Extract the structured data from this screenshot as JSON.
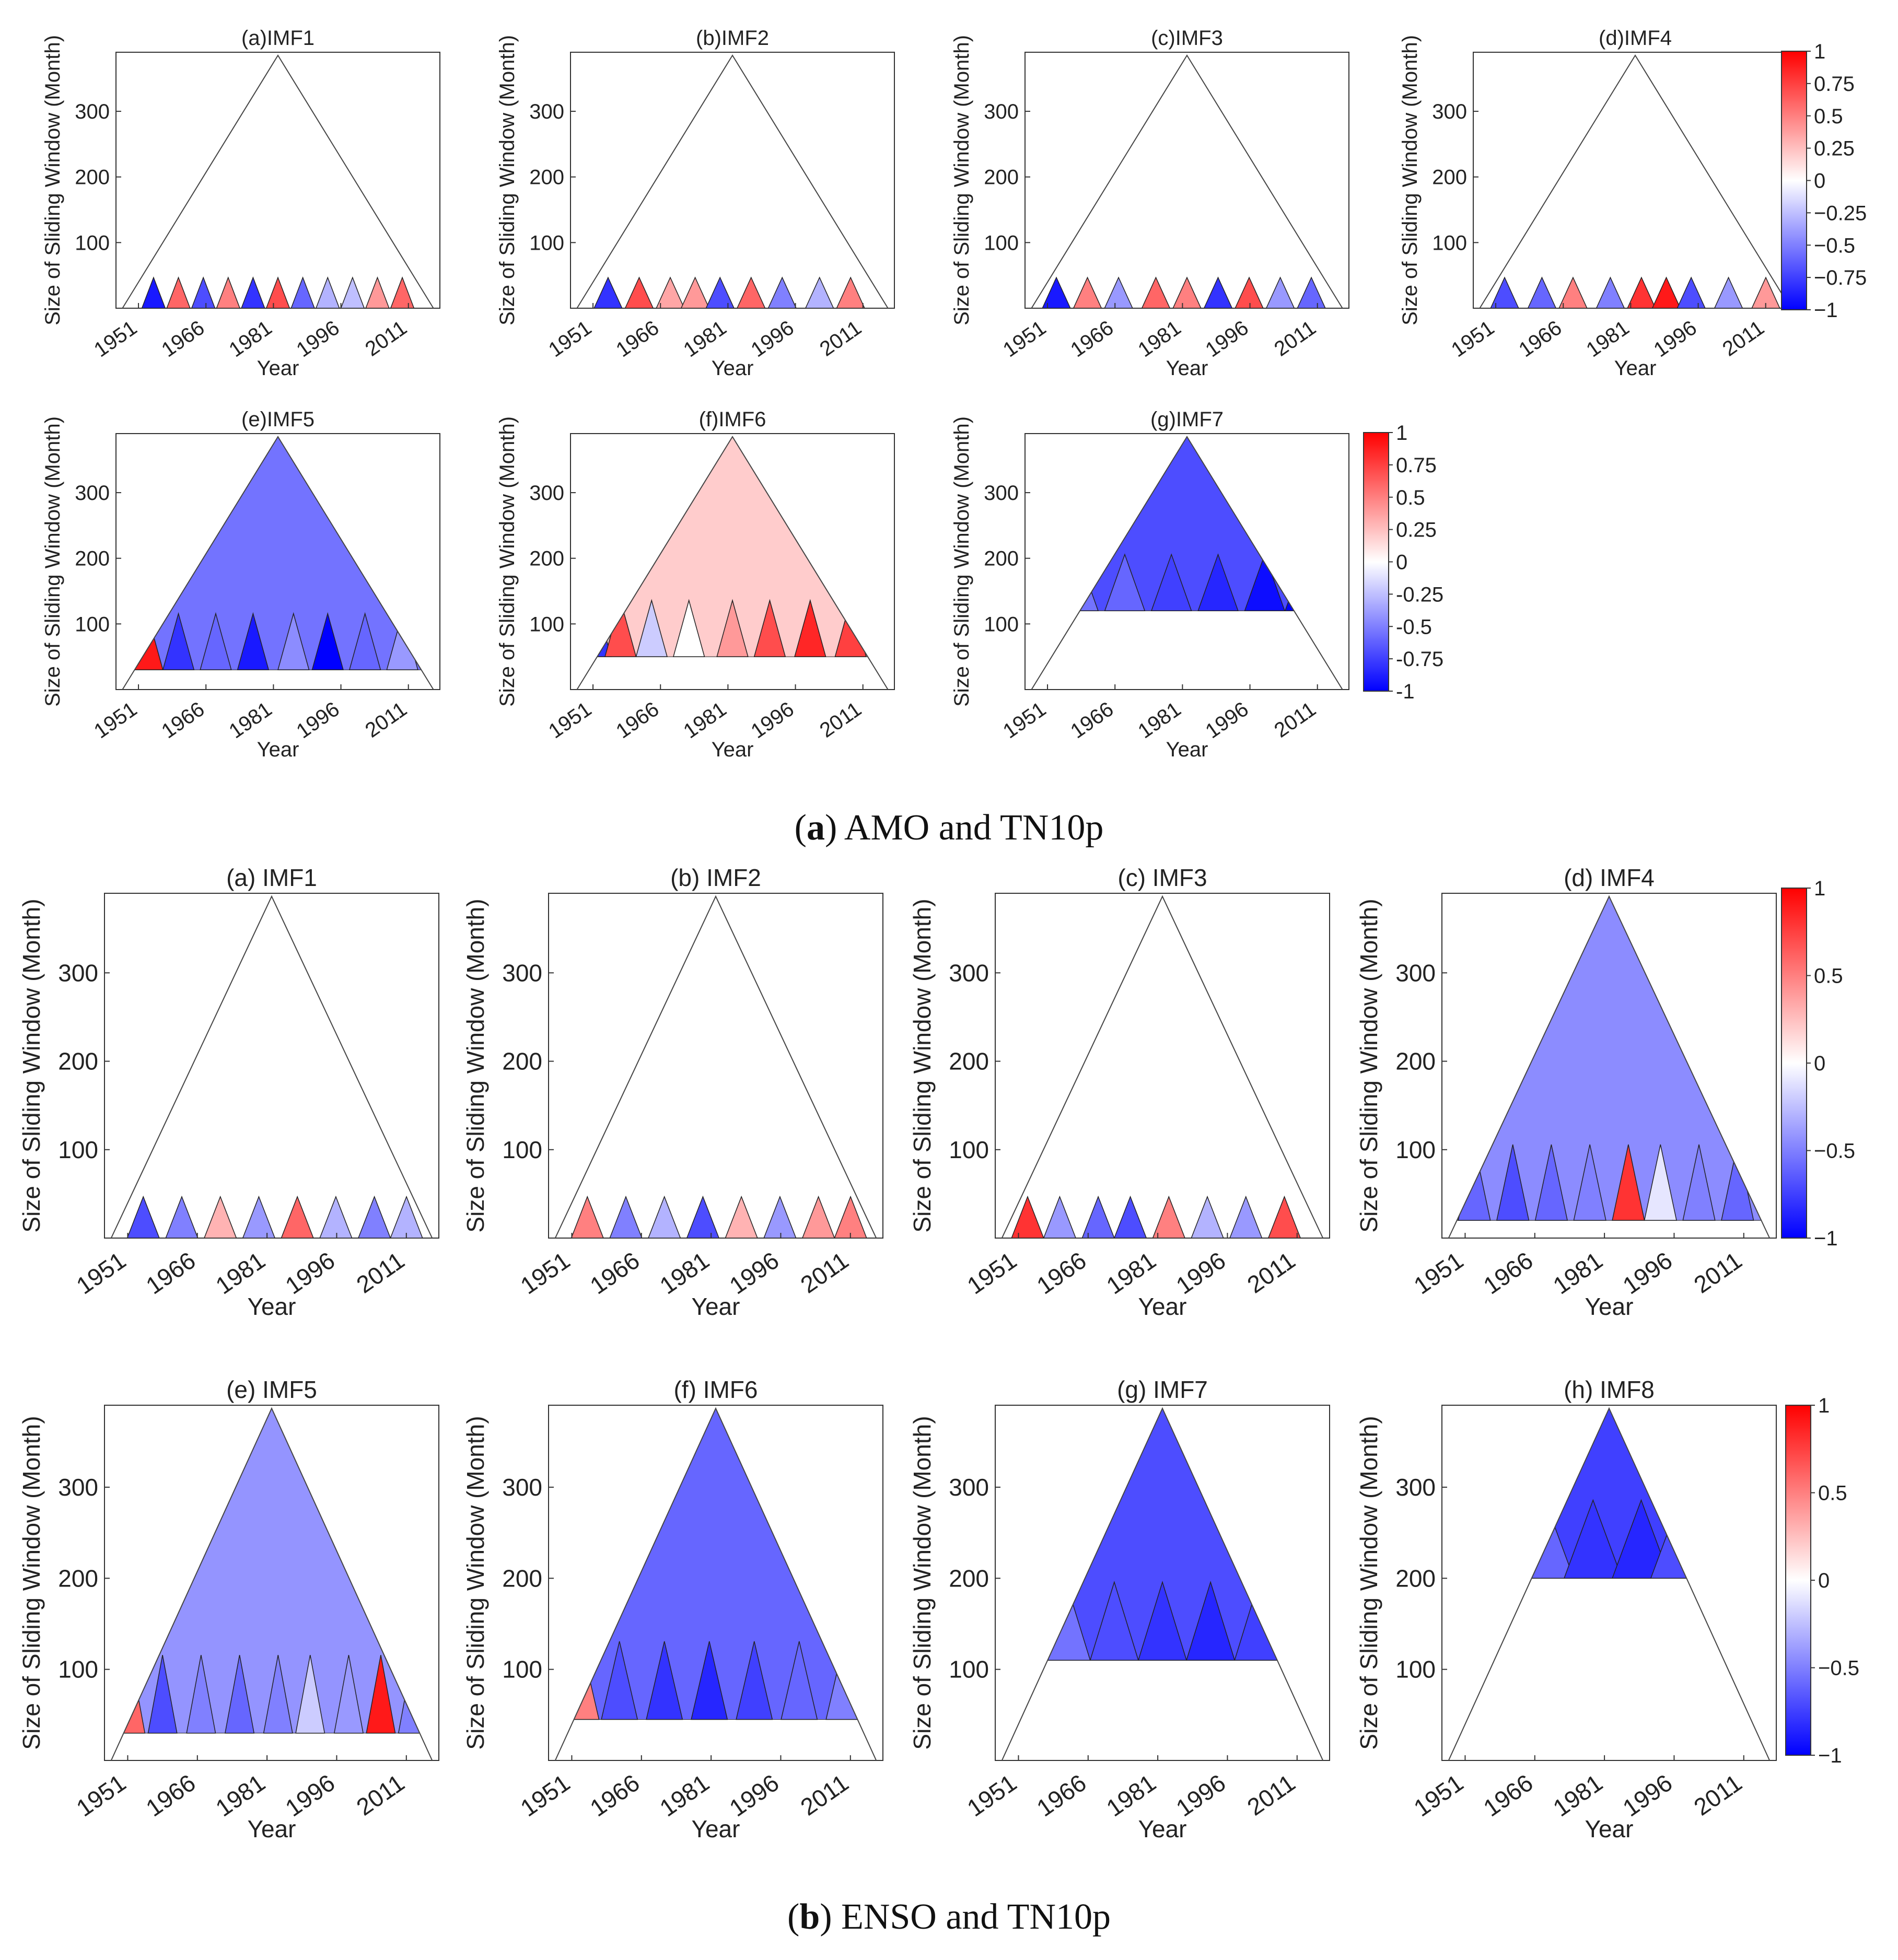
{
  "figure": {
    "section_a": {
      "label": "a",
      "caption": "AMO and TN10p",
      "panels": [
        {
          "title": "(a)IMF1",
          "coverage": "base",
          "corr": -0.05,
          "cells": [
            [
              10,
              -0.9
            ],
            [
              18,
              0.6
            ],
            [
              26,
              -0.7
            ],
            [
              34,
              0.5
            ],
            [
              42,
              -0.8
            ],
            [
              50,
              0.7
            ],
            [
              58,
              -0.6
            ],
            [
              66,
              -0.3
            ],
            [
              74,
              -0.25
            ],
            [
              82,
              0.4
            ],
            [
              90,
              0.6
            ]
          ]
        },
        {
          "title": "(b)IMF2",
          "coverage": "base",
          "corr": 0.0,
          "cells": [
            [
              10,
              -0.8
            ],
            [
              20,
              0.7
            ],
            [
              30,
              0.35
            ],
            [
              38,
              0.4
            ],
            [
              46,
              -0.7
            ],
            [
              56,
              0.6
            ],
            [
              66,
              -0.5
            ],
            [
              78,
              -0.3
            ],
            [
              88,
              0.5
            ]
          ]
        },
        {
          "title": "(c)IMF3",
          "coverage": "base",
          "corr": -0.2,
          "cells": [
            [
              8,
              -0.9
            ],
            [
              18,
              0.5
            ],
            [
              28,
              -0.4
            ],
            [
              40,
              0.6
            ],
            [
              50,
              0.5
            ],
            [
              60,
              -0.8
            ],
            [
              70,
              0.7
            ],
            [
              80,
              -0.4
            ],
            [
              90,
              -0.6
            ]
          ]
        },
        {
          "title": "(d)IMF4",
          "coverage": "base",
          "corr": -0.3,
          "cells": [
            [
              8,
              -0.7
            ],
            [
              20,
              -0.6
            ],
            [
              30,
              0.5
            ],
            [
              42,
              -0.5
            ],
            [
              52,
              0.8
            ],
            [
              60,
              0.9
            ],
            [
              68,
              -0.7
            ],
            [
              80,
              -0.4
            ],
            [
              92,
              0.4
            ]
          ]
        },
        {
          "title": "(e)IMF5",
          "coverage": "full",
          "min_window": 30,
          "corr": -0.55,
          "cells": [
            [
              8,
              0.9
            ],
            [
              18,
              -0.8
            ],
            [
              30,
              -0.6
            ],
            [
              42,
              -0.9
            ],
            [
              55,
              -0.45
            ],
            [
              66,
              -1.0
            ],
            [
              78,
              -0.6
            ],
            [
              90,
              -0.4
            ]
          ]
        },
        {
          "title": "(f)IMF6",
          "coverage": "full",
          "min_window": 50,
          "corr": 0.2,
          "cells": [
            [
              6,
              -0.8
            ],
            [
              14,
              0.7
            ],
            [
              24,
              -0.2
            ],
            [
              36,
              0.0
            ],
            [
              50,
              0.4
            ],
            [
              62,
              0.7
            ],
            [
              75,
              0.85
            ],
            [
              88,
              0.75
            ]
          ]
        },
        {
          "title": "(g)IMF7",
          "coverage": "full",
          "min_window": 120,
          "corr": -0.7,
          "cells": [
            [
              15,
              -0.55
            ],
            [
              30,
              -0.6
            ],
            [
              45,
              -0.75
            ],
            [
              60,
              -0.85
            ],
            [
              75,
              -0.95
            ],
            [
              88,
              -1.0
            ]
          ]
        }
      ],
      "colorbars": [
        {
          "ticks": [
            "1",
            "0.75",
            "0.5",
            "0.25",
            "0",
            "−0.25",
            "−0.5",
            "−0.75",
            "−1"
          ]
        },
        {
          "ticks": [
            "1",
            "0.75",
            "0.5",
            "0.25",
            "0",
            "-0.25",
            "-0.5",
            "-0.75",
            "-1"
          ]
        }
      ]
    },
    "section_b": {
      "label": "b",
      "caption": "ENSO and TN10p",
      "panels": [
        {
          "title": "(a) IMF1",
          "coverage": "base",
          "corr": -0.05,
          "cells": [
            [
              10,
              -0.7
            ],
            [
              22,
              -0.5
            ],
            [
              34,
              0.3
            ],
            [
              46,
              -0.4
            ],
            [
              58,
              0.6
            ],
            [
              70,
              -0.3
            ],
            [
              82,
              -0.5
            ],
            [
              92,
              -0.3
            ]
          ]
        },
        {
          "title": "(b) IMF2",
          "coverage": "base",
          "corr": -0.18,
          "cells": [
            [
              10,
              0.5
            ],
            [
              22,
              -0.5
            ],
            [
              34,
              -0.3
            ],
            [
              46,
              -0.7
            ],
            [
              58,
              0.3
            ],
            [
              70,
              -0.4
            ],
            [
              82,
              0.4
            ],
            [
              92,
              0.5
            ]
          ]
        },
        {
          "title": "(c) IMF3",
          "coverage": "base",
          "corr": -0.05,
          "cells": [
            [
              8,
              0.8
            ],
            [
              18,
              -0.4
            ],
            [
              30,
              -0.6
            ],
            [
              40,
              -0.7
            ],
            [
              52,
              0.5
            ],
            [
              64,
              -0.3
            ],
            [
              76,
              -0.4
            ],
            [
              88,
              0.7
            ]
          ]
        },
        {
          "title": "(d) IMF4",
          "coverage": "full",
          "min_window": 20,
          "corr": -0.45,
          "cells": [
            [
              8,
              -0.6
            ],
            [
              20,
              -0.7
            ],
            [
              32,
              -0.6
            ],
            [
              44,
              -0.5
            ],
            [
              56,
              0.8
            ],
            [
              66,
              -0.1
            ],
            [
              78,
              -0.5
            ],
            [
              90,
              -0.6
            ]
          ]
        },
        {
          "title": "(e) IMF5",
          "coverage": "full",
          "min_window": 30,
          "corr": -0.42,
          "cells": [
            [
              6,
              0.6
            ],
            [
              16,
              -0.7
            ],
            [
              28,
              -0.5
            ],
            [
              40,
              -0.6
            ],
            [
              52,
              -0.5
            ],
            [
              62,
              -0.2
            ],
            [
              74,
              -0.4
            ],
            [
              84,
              0.9
            ],
            [
              94,
              -0.5
            ]
          ]
        },
        {
          "title": "(f) IMF6",
          "coverage": "full",
          "min_window": 45,
          "corr": -0.6,
          "cells": [
            [
              8,
              0.5
            ],
            [
              20,
              -0.7
            ],
            [
              34,
              -0.8
            ],
            [
              48,
              -0.85
            ],
            [
              62,
              -0.75
            ],
            [
              76,
              -0.6
            ],
            [
              90,
              -0.5
            ]
          ]
        },
        {
          "title": "(g) IMF7",
          "coverage": "full",
          "min_window": 110,
          "corr": -0.7,
          "cells": [
            [
              20,
              -0.55
            ],
            [
              35,
              -0.7
            ],
            [
              50,
              -0.8
            ],
            [
              65,
              -0.85
            ],
            [
              80,
              -0.75
            ]
          ]
        },
        {
          "title": "(h) IMF8",
          "coverage": "full",
          "min_window": 200,
          "corr": -0.75,
          "cells": [
            [
              30,
              -0.6
            ],
            [
              45,
              -0.8
            ],
            [
              60,
              -0.85
            ],
            [
              72,
              -0.7
            ]
          ]
        }
      ],
      "colorbars": [
        {
          "ticks": [
            "1",
            "0.5",
            "0",
            "−0.5",
            "−1"
          ]
        },
        {
          "ticks": [
            "1",
            "0.5",
            "0",
            "−0.5",
            "−1"
          ]
        }
      ]
    }
  },
  "chart_data": {
    "type": "heatmap",
    "description_of_axes": "Triangular sliding-window correlation maps",
    "xlabel": "Year",
    "ylabel": "Size of Sliding Window (Month)",
    "x_ticks": [
      "1951",
      "1966",
      "1981",
      "1996",
      "2011"
    ],
    "y_ticks": [
      "100",
      "200",
      "300"
    ],
    "x_range": [
      1946,
      2018
    ],
    "y_range": [
      0,
      390
    ],
    "colorbar_range": [
      -1,
      1
    ],
    "colormap": [
      "#0000ff",
      "#ffffff",
      "#ff0000"
    ],
    "note": "Panel colour cells hold estimated dominant correlation per position (relative position 0-100 along base, value in [-1,1])"
  }
}
